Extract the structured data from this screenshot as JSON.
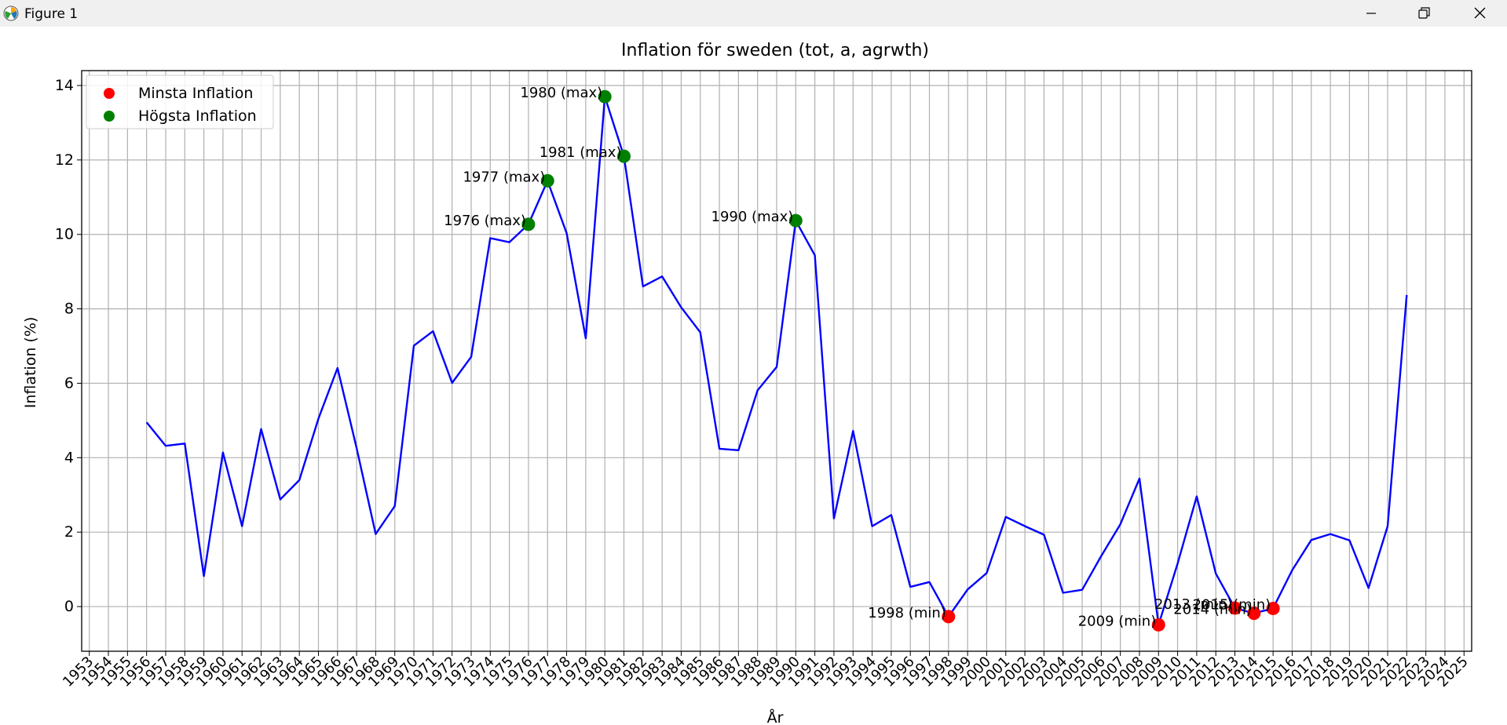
{
  "window": {
    "title": "Figure 1",
    "controls": [
      "minimize-icon",
      "restore-icon",
      "close-icon"
    ]
  },
  "chart_data": {
    "type": "line",
    "title": "Inflation för sweden (tot, a, agrwth)",
    "xlabel": "År",
    "ylabel": "Inflation (%)",
    "xlim": [
      1952.6,
      2025.4
    ],
    "ylim": [
      -1.2,
      14.4
    ],
    "xticks": [
      1953,
      1954,
      1955,
      1956,
      1957,
      1958,
      1959,
      1960,
      1961,
      1962,
      1963,
      1964,
      1965,
      1966,
      1967,
      1968,
      1969,
      1970,
      1971,
      1972,
      1973,
      1974,
      1975,
      1976,
      1977,
      1978,
      1979,
      1980,
      1981,
      1982,
      1983,
      1984,
      1985,
      1986,
      1987,
      1988,
      1989,
      1990,
      1991,
      1992,
      1993,
      1994,
      1995,
      1996,
      1997,
      1998,
      1999,
      2000,
      2001,
      2002,
      2003,
      2004,
      2005,
      2006,
      2007,
      2008,
      2009,
      2010,
      2011,
      2012,
      2013,
      2014,
      2015,
      2016,
      2017,
      2018,
      2019,
      2020,
      2021,
      2022,
      2023,
      2024,
      2025
    ],
    "yticks": [
      0,
      2,
      4,
      6,
      8,
      10,
      12,
      14
    ],
    "grid": true,
    "legend": {
      "placement": "upper-left",
      "entries": [
        {
          "label": "Minsta Inflation",
          "color": "#ff0000"
        },
        {
          "label": "Högsta Inflation",
          "color": "#008000"
        }
      ]
    },
    "series": [
      {
        "color": "#0000ff",
        "x": [
          1956,
          1957,
          1958,
          1959,
          1960,
          1961,
          1962,
          1963,
          1964,
          1965,
          1966,
          1967,
          1968,
          1969,
          1970,
          1971,
          1972,
          1973,
          1974,
          1975,
          1976,
          1977,
          1978,
          1979,
          1980,
          1981,
          1982,
          1983,
          1984,
          1985,
          1986,
          1987,
          1988,
          1989,
          1990,
          1991,
          1992,
          1993,
          1994,
          1995,
          1996,
          1997,
          1998,
          1999,
          2000,
          2001,
          2002,
          2003,
          2004,
          2005,
          2006,
          2007,
          2008,
          2009,
          2010,
          2011,
          2012,
          2013,
          2014,
          2015,
          2016,
          2017,
          2018,
          2019,
          2020,
          2021,
          2022
        ],
        "y": [
          4.95,
          4.32,
          4.38,
          0.82,
          4.14,
          2.16,
          4.77,
          2.88,
          3.4,
          5.05,
          6.41,
          4.26,
          1.95,
          2.7,
          7.01,
          7.4,
          6.01,
          6.71,
          9.9,
          9.79,
          10.27,
          11.44,
          10.03,
          7.21,
          13.7,
          12.1,
          8.6,
          8.87,
          8.04,
          7.37,
          4.24,
          4.2,
          5.81,
          6.44,
          10.37,
          9.44,
          2.37,
          4.72,
          2.16,
          2.46,
          0.53,
          0.66,
          -0.27,
          0.46,
          0.9,
          2.41,
          2.16,
          1.93,
          0.37,
          0.45,
          1.36,
          2.21,
          3.44,
          -0.49,
          1.16,
          2.96,
          0.89,
          -0.04,
          -0.18,
          -0.05,
          0.98,
          1.79,
          1.95,
          1.78,
          0.5,
          2.16,
          8.37
        ]
      }
    ],
    "min_points": {
      "color": "#ff0000",
      "points": [
        {
          "x": 1998,
          "y": -0.27,
          "label": "1998 (min)"
        },
        {
          "x": 2009,
          "y": -0.49,
          "label": "2009 (min)"
        },
        {
          "x": 2013,
          "y": -0.04,
          "label": "2013 (min)"
        },
        {
          "x": 2014,
          "y": -0.18,
          "label": "2014 (min)"
        },
        {
          "x": 2015,
          "y": -0.05,
          "label": "2015 (min)"
        }
      ]
    },
    "max_points": {
      "color": "#008000",
      "points": [
        {
          "x": 1976,
          "y": 10.27,
          "label": "1976 (max)"
        },
        {
          "x": 1977,
          "y": 11.44,
          "label": "1977 (max)"
        },
        {
          "x": 1980,
          "y": 13.7,
          "label": "1980 (max)"
        },
        {
          "x": 1981,
          "y": 12.1,
          "label": "1981 (max)"
        },
        {
          "x": 1990,
          "y": 10.37,
          "label": "1990 (max)"
        }
      ]
    }
  }
}
